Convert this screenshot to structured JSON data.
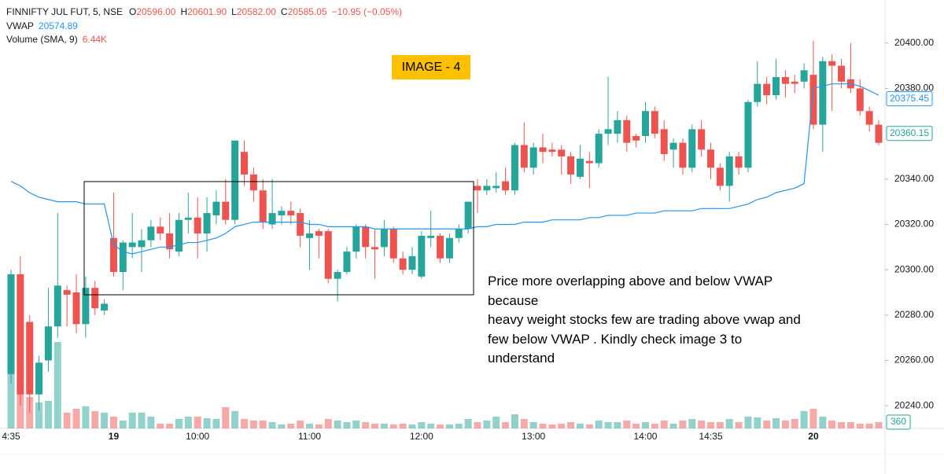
{
  "chart_data": {
    "type": "candlestick",
    "legend": {
      "symbol": "FINNIFTY JUL FUT, 5, NSE",
      "ohlc": [
        {
          "key": "O",
          "value": "20596.00"
        },
        {
          "key": "H",
          "value": "20601.90"
        },
        {
          "key": "L",
          "value": "20582.00"
        },
        {
          "key": "C",
          "value": "20585.05"
        }
      ],
      "change": "−10.95 (−0.05%)",
      "vwap_value": "20574.89",
      "volume": {
        "name": "Volume (SMA, 9)",
        "value": "6.44K"
      }
    },
    "categories": [
      "4:35",
      null,
      null,
      null,
      null,
      null,
      null,
      null,
      null,
      null,
      null,
      "19",
      null,
      null,
      null,
      null,
      null,
      null,
      null,
      null,
      "10:00",
      null,
      null,
      null,
      null,
      null,
      null,
      null,
      null,
      null,
      null,
      null,
      "11:00",
      null,
      null,
      null,
      null,
      null,
      null,
      null,
      null,
      null,
      null,
      null,
      "12:00",
      null,
      null,
      null,
      null,
      null,
      null,
      null,
      null,
      null,
      null,
      null,
      "13:00",
      null,
      null,
      null,
      null,
      null,
      null,
      null,
      null,
      null,
      null,
      null,
      "14:00",
      null,
      null,
      null,
      null,
      null,
      null,
      "14:35",
      null,
      null,
      null,
      null,
      null,
      null,
      null,
      null,
      null,
      null,
      "20",
      null,
      null,
      null,
      null,
      null,
      null,
      null
    ],
    "open": [
      20254,
      20298,
      20277,
      20245,
      20260,
      20275,
      20291,
      20290,
      20276,
      20292,
      20282,
      20314,
      20299,
      20310,
      20310,
      20313,
      20319,
      20316,
      20308,
      20322,
      20323,
      20316,
      20324,
      20330,
      20322,
      20352,
      20342,
      20335,
      20320,
      20324,
      20326,
      20325,
      20314,
      20317,
      20317,
      20296,
      20299,
      20308,
      20319,
      20310,
      20310,
      20318,
      20305,
      20300,
      20297,
      20314,
      20315,
      20305,
      20314,
      20318,
      20337,
      20335,
      20336,
      20339,
      20335,
      20355,
      20345,
      20354,
      20353,
      20353,
      20350,
      20341,
      20348,
      20347,
      20360,
      20360,
      20366,
      20359,
      20359,
      20370,
      20362,
      20353,
      20356,
      20345,
      20362,
      20353,
      20345,
      20337,
      20350,
      20345,
      20374,
      20382,
      20377,
      20385,
      20383,
      20383,
      20386,
      20364,
      20392,
      20390,
      20384,
      20380,
      20370,
      20364
    ],
    "high": [
      20300,
      20306,
      20280,
      20262,
      20292,
      20325,
      20293,
      20298,
      20297,
      20295,
      20287,
      20334,
      20313,
      20325,
      20318,
      20322,
      20323,
      20325,
      20325,
      20334,
      20332,
      20332,
      20335,
      20340,
      20357,
      20357,
      20345,
      20340,
      20340,
      20328,
      20330,
      20327,
      20322,
      20318,
      20318,
      20300,
      20310,
      20320,
      20320,
      20318,
      20322,
      20319,
      20308,
      20310,
      20317,
      20326,
      20316,
      20316,
      20320,
      20330,
      20340,
      20340,
      20343,
      20345,
      20356,
      20365,
      20356,
      20360,
      20356,
      20355,
      20352,
      20355,
      20352,
      20362,
      20385,
      20370,
      20368,
      20360,
      20374,
      20372,
      20366,
      20358,
      20358,
      20364,
      20366,
      20356,
      20347,
      20352,
      20352,
      20375,
      20392,
      20385,
      20393,
      20388,
      20386,
      20391,
      20401,
      20394,
      20395,
      20393,
      20400,
      20384,
      20372,
      20366
    ],
    "low": [
      20250,
      20240,
      20237,
      20238,
      20255,
      20270,
      20275,
      20272,
      20270,
      20280,
      20280,
      20297,
      20291,
      20305,
      20299,
      20310,
      20313,
      20305,
      20306,
      20316,
      20305,
      20308,
      20320,
      20320,
      20320,
      20337,
      20330,
      20318,
      20318,
      20320,
      20320,
      20310,
      20300,
      20305,
      20294,
      20286,
      20298,
      20305,
      20305,
      20296,
      20306,
      20303,
      20298,
      20298,
      20296,
      20310,
      20303,
      20303,
      20312,
      20316,
      20325,
      20333,
      20334,
      20333,
      20333,
      20343,
      20342,
      20347,
      20350,
      20342,
      20338,
      20340,
      20336,
      20345,
      20355,
      20356,
      20352,
      20354,
      20356,
      20358,
      20348,
      20345,
      20342,
      20343,
      20350,
      20340,
      20335,
      20330,
      20342,
      20343,
      20372,
      20373,
      20375,
      20376,
      20378,
      20380,
      20362,
      20352,
      20370,
      20380,
      20378,
      20368,
      20361,
      20355
    ],
    "close": [
      20298,
      20245,
      20245,
      20259,
      20275,
      20293,
      20289,
      20276,
      20292,
      20283,
      20285,
      20299,
      20312,
      20312,
      20313,
      20319,
      20316,
      20309,
      20322,
      20323,
      20316,
      20325,
      20330,
      20322,
      20357,
      20342,
      20335,
      20321,
      20325,
      20326,
      20324,
      20315,
      20316,
      20315,
      20296,
      20299,
      20308,
      20319,
      20310,
      20309,
      20318,
      20305,
      20300,
      20306,
      20315,
      20315,
      20305,
      20314,
      20318,
      20330,
      20335,
      20337,
      20337,
      20335,
      20355,
      20345,
      20354,
      20352,
      20352,
      20350,
      20342,
      20349,
      20347,
      20360,
      20362,
      20366,
      20356,
      20357,
      20370,
      20360,
      20351,
      20356,
      20345,
      20362,
      20353,
      20345,
      20337,
      20350,
      20345,
      20374,
      20382,
      20377,
      20385,
      20382,
      20382,
      20388,
      20364,
      20392,
      20390,
      20383,
      20380,
      20370,
      20364,
      20356
    ],
    "volume": [
      3150,
      2025,
      1800,
      1485,
      1575,
      4950,
      900,
      1125,
      1260,
      990,
      900,
      675,
      450,
      900,
      900,
      675,
      270,
      270,
      540,
      675,
      675,
      585,
      540,
      1215,
      990,
      540,
      450,
      450,
      360,
      225,
      270,
      450,
      270,
      225,
      540,
      450,
      360,
      450,
      360,
      270,
      270,
      225,
      270,
      225,
      360,
      270,
      225,
      225,
      270,
      540,
      360,
      450,
      675,
      360,
      810,
      540,
      360,
      270,
      225,
      270,
      360,
      270,
      225,
      450,
      360,
      360,
      450,
      270,
      360,
      270,
      450,
      270,
      450,
      540,
      450,
      360,
      360,
      540,
      360,
      675,
      630,
      450,
      585,
      450,
      540,
      990,
      1125,
      675,
      450,
      360,
      360,
      270,
      270,
      360
    ],
    "vwap": {
      "name": "VWAP",
      "color": "#2196f3",
      "values": [
        20339,
        20337,
        20334,
        20332,
        20331,
        20330,
        20330,
        20330,
        20329,
        20329,
        20329,
        20311,
        20308,
        20307,
        20308,
        20309,
        20310,
        20310,
        20311,
        20312,
        20312,
        20313,
        20314,
        20316,
        20319,
        20320,
        20321,
        20321,
        20321,
        20321,
        20321,
        20321,
        20320,
        20320,
        20319,
        20319,
        20319,
        20319,
        20319,
        20318,
        20318,
        20318,
        20318,
        20318,
        20318,
        20318,
        20318,
        20318,
        20318,
        20318,
        20319,
        20319,
        20320,
        20320,
        20320,
        20321,
        20321,
        20321,
        20322,
        20322,
        20322,
        20322,
        20323,
        20323,
        20324,
        20324,
        20324,
        20325,
        20325,
        20325,
        20326,
        20326,
        20326,
        20326,
        20327,
        20327,
        20327,
        20327,
        20328,
        20329,
        20331,
        20332,
        20334,
        20335,
        20336,
        20338,
        20380,
        20381,
        20382,
        20382,
        20382,
        20381,
        20379,
        20377
      ]
    },
    "up_color": "#26a69a",
    "down_color": "#ef5350",
    "ylim": [
      20230,
      20419
    ],
    "yticks": [
      {
        "value": 20240,
        "label": "20240.00"
      },
      {
        "value": 20260,
        "label": "20260.00"
      },
      {
        "value": 20280,
        "label": "20280.00"
      },
      {
        "value": 20300,
        "label": "20300.00"
      },
      {
        "value": 20320,
        "label": "20320.00"
      },
      {
        "value": 20340,
        "label": "20340.00"
      },
      {
        "value": 20380,
        "label": "20380.00"
      },
      {
        "value": 20400,
        "label": "20400.00"
      }
    ],
    "volume_ylim": [
      0,
      24525
    ],
    "grid": false,
    "price_markers": [
      {
        "value": 20375.45,
        "color": "#2196f3"
      },
      {
        "value": 20360.15,
        "color": "#26a69a"
      }
    ],
    "volume_marker": 360,
    "annotations": {
      "badge": "IMAGE - 4",
      "note": [
        "Price more overlapping above and below VWAP",
        "because",
        "heavy weight stocks few are trading above vwap and",
        "few below VWAP . Kindly check image 3 to",
        "understand"
      ]
    }
  }
}
